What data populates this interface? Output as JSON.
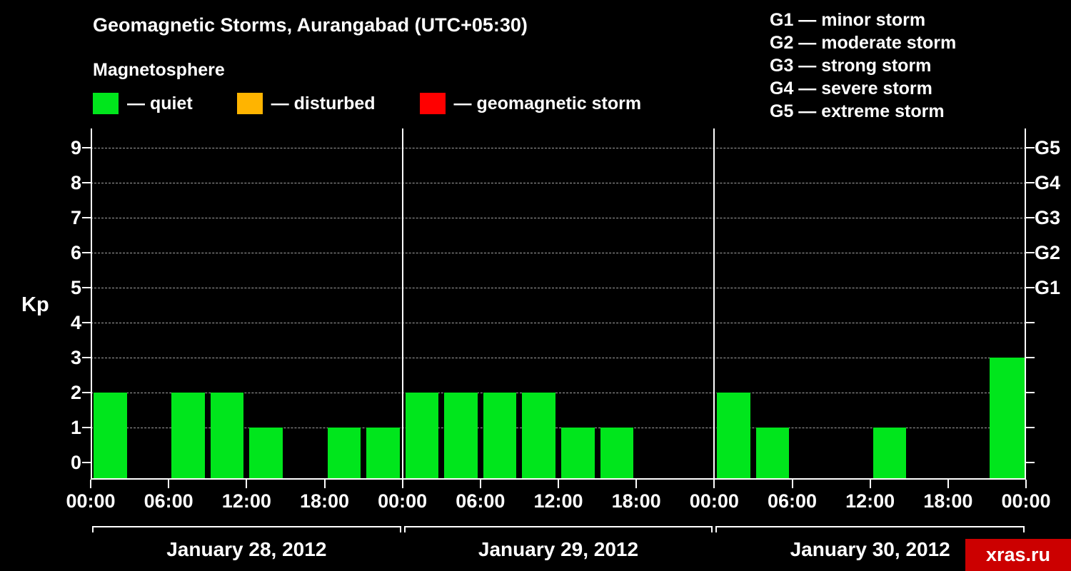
{
  "header": {
    "title": "Geomagnetic Storms, Aurangabad (UTC+05:30)",
    "subtitle": "Magnetosphere"
  },
  "legend": {
    "items": [
      {
        "name": "quiet",
        "label": "— quiet",
        "color": "#00e61c"
      },
      {
        "name": "disturbed",
        "label": "— disturbed",
        "color": "#ffb400"
      },
      {
        "name": "storm",
        "label": "— geomagnetic storm",
        "color": "#ff0000"
      }
    ]
  },
  "g_scale": {
    "items": [
      {
        "label": "G1 — minor storm"
      },
      {
        "label": "G2 — moderate storm"
      },
      {
        "label": "G3 — strong storm"
      },
      {
        "label": "G4 — severe storm"
      },
      {
        "label": "G5 — extreme storm"
      }
    ]
  },
  "watermark": {
    "label": "xras.ru"
  },
  "chart_data": {
    "type": "bar",
    "title": "Geomagnetic Storms, Aurangabad (UTC+05:30)",
    "ylabel": "Kp",
    "ylim": [
      0,
      9
    ],
    "yticks": [
      0,
      1,
      2,
      3,
      4,
      5,
      6,
      7,
      8,
      9
    ],
    "gridlines": [
      1,
      2,
      3,
      4,
      5,
      6,
      7,
      8,
      9
    ],
    "right_axis_ticks": [
      {
        "value": 5,
        "label": "G1"
      },
      {
        "value": 6,
        "label": "G2"
      },
      {
        "value": 7,
        "label": "G3"
      },
      {
        "value": 8,
        "label": "G4"
      },
      {
        "value": 9,
        "label": "G5"
      }
    ],
    "interval_hours": 3,
    "xtick_labels": [
      "00:00",
      "06:00",
      "12:00",
      "18:00",
      "00:00",
      "06:00",
      "12:00",
      "18:00",
      "00:00",
      "06:00",
      "12:00",
      "18:00",
      "00:00"
    ],
    "days": [
      {
        "date": "January 28, 2012",
        "values": [
          2,
          0,
          2,
          2,
          1,
          0,
          1,
          1
        ]
      },
      {
        "date": "January 29, 2012",
        "values": [
          2,
          2,
          2,
          2,
          1,
          1,
          0,
          0
        ]
      },
      {
        "date": "January 30, 2012",
        "values": [
          2,
          1,
          0,
          0,
          1,
          0,
          0,
          3
        ]
      }
    ],
    "next_partial_value": 3,
    "colors": {
      "quiet": "#00e61c",
      "disturbed": "#ffb400",
      "storm": "#ff0000"
    },
    "thresholds": {
      "disturbed": 4,
      "storm": 5
    }
  }
}
